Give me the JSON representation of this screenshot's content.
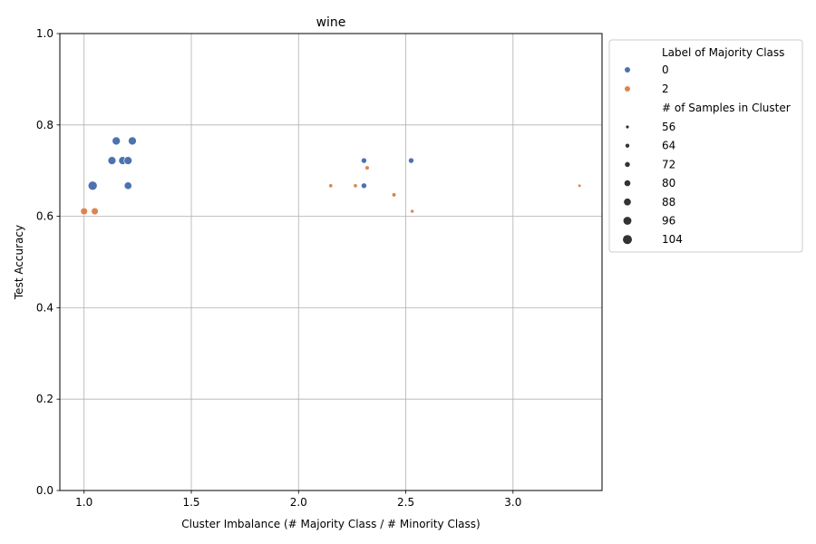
{
  "chart_data": {
    "type": "scatter",
    "title": "wine",
    "xlabel": "Cluster Imbalance (# Majority Class / # Minority Class)",
    "ylabel": "Test Accuracy",
    "xlim": [
      0.887,
      3.415
    ],
    "ylim": [
      0.0,
      1.0
    ],
    "xticks": [
      "1.0",
      "1.5",
      "2.0",
      "2.5",
      "3.0"
    ],
    "yticks": [
      "0.0",
      "0.2",
      "0.4",
      "0.6",
      "0.8",
      "1.0"
    ],
    "grid": true,
    "legend_placement": "outside-upper-right",
    "hue_title": "Label of Majority Class",
    "size_title": "# of Samples in Cluster",
    "hue_levels": [
      {
        "label": "0",
        "color": "#4c72b0"
      },
      {
        "label": "2",
        "color": "#dd8452"
      }
    ],
    "size_levels": [
      "56",
      "64",
      "72",
      "80",
      "88",
      "96",
      "104"
    ],
    "size_range": [
      56,
      104
    ],
    "points": [
      {
        "x": 1.04,
        "y": 0.667,
        "label": "0",
        "n": 104
      },
      {
        "x": 1.13,
        "y": 0.722,
        "label": "0",
        "n": 96
      },
      {
        "x": 1.15,
        "y": 0.765,
        "label": "0",
        "n": 96
      },
      {
        "x": 1.18,
        "y": 0.722,
        "label": "0",
        "n": 96
      },
      {
        "x": 1.205,
        "y": 0.722,
        "label": "0",
        "n": 96
      },
      {
        "x": 1.225,
        "y": 0.765,
        "label": "0",
        "n": 96
      },
      {
        "x": 1.205,
        "y": 0.667,
        "label": "0",
        "n": 92
      },
      {
        "x": 2.305,
        "y": 0.722,
        "label": "0",
        "n": 76
      },
      {
        "x": 2.305,
        "y": 0.667,
        "label": "0",
        "n": 76
      },
      {
        "x": 2.525,
        "y": 0.722,
        "label": "0",
        "n": 76
      },
      {
        "x": 1.0,
        "y": 0.611,
        "label": "2",
        "n": 88
      },
      {
        "x": 1.05,
        "y": 0.611,
        "label": "2",
        "n": 88
      },
      {
        "x": 2.15,
        "y": 0.667,
        "label": "2",
        "n": 64
      },
      {
        "x": 2.265,
        "y": 0.667,
        "label": "2",
        "n": 64
      },
      {
        "x": 2.32,
        "y": 0.706,
        "label": "2",
        "n": 66
      },
      {
        "x": 2.445,
        "y": 0.647,
        "label": "2",
        "n": 66
      },
      {
        "x": 2.53,
        "y": 0.611,
        "label": "2",
        "n": 62
      },
      {
        "x": 3.31,
        "y": 0.667,
        "label": "2",
        "n": 58
      }
    ]
  }
}
